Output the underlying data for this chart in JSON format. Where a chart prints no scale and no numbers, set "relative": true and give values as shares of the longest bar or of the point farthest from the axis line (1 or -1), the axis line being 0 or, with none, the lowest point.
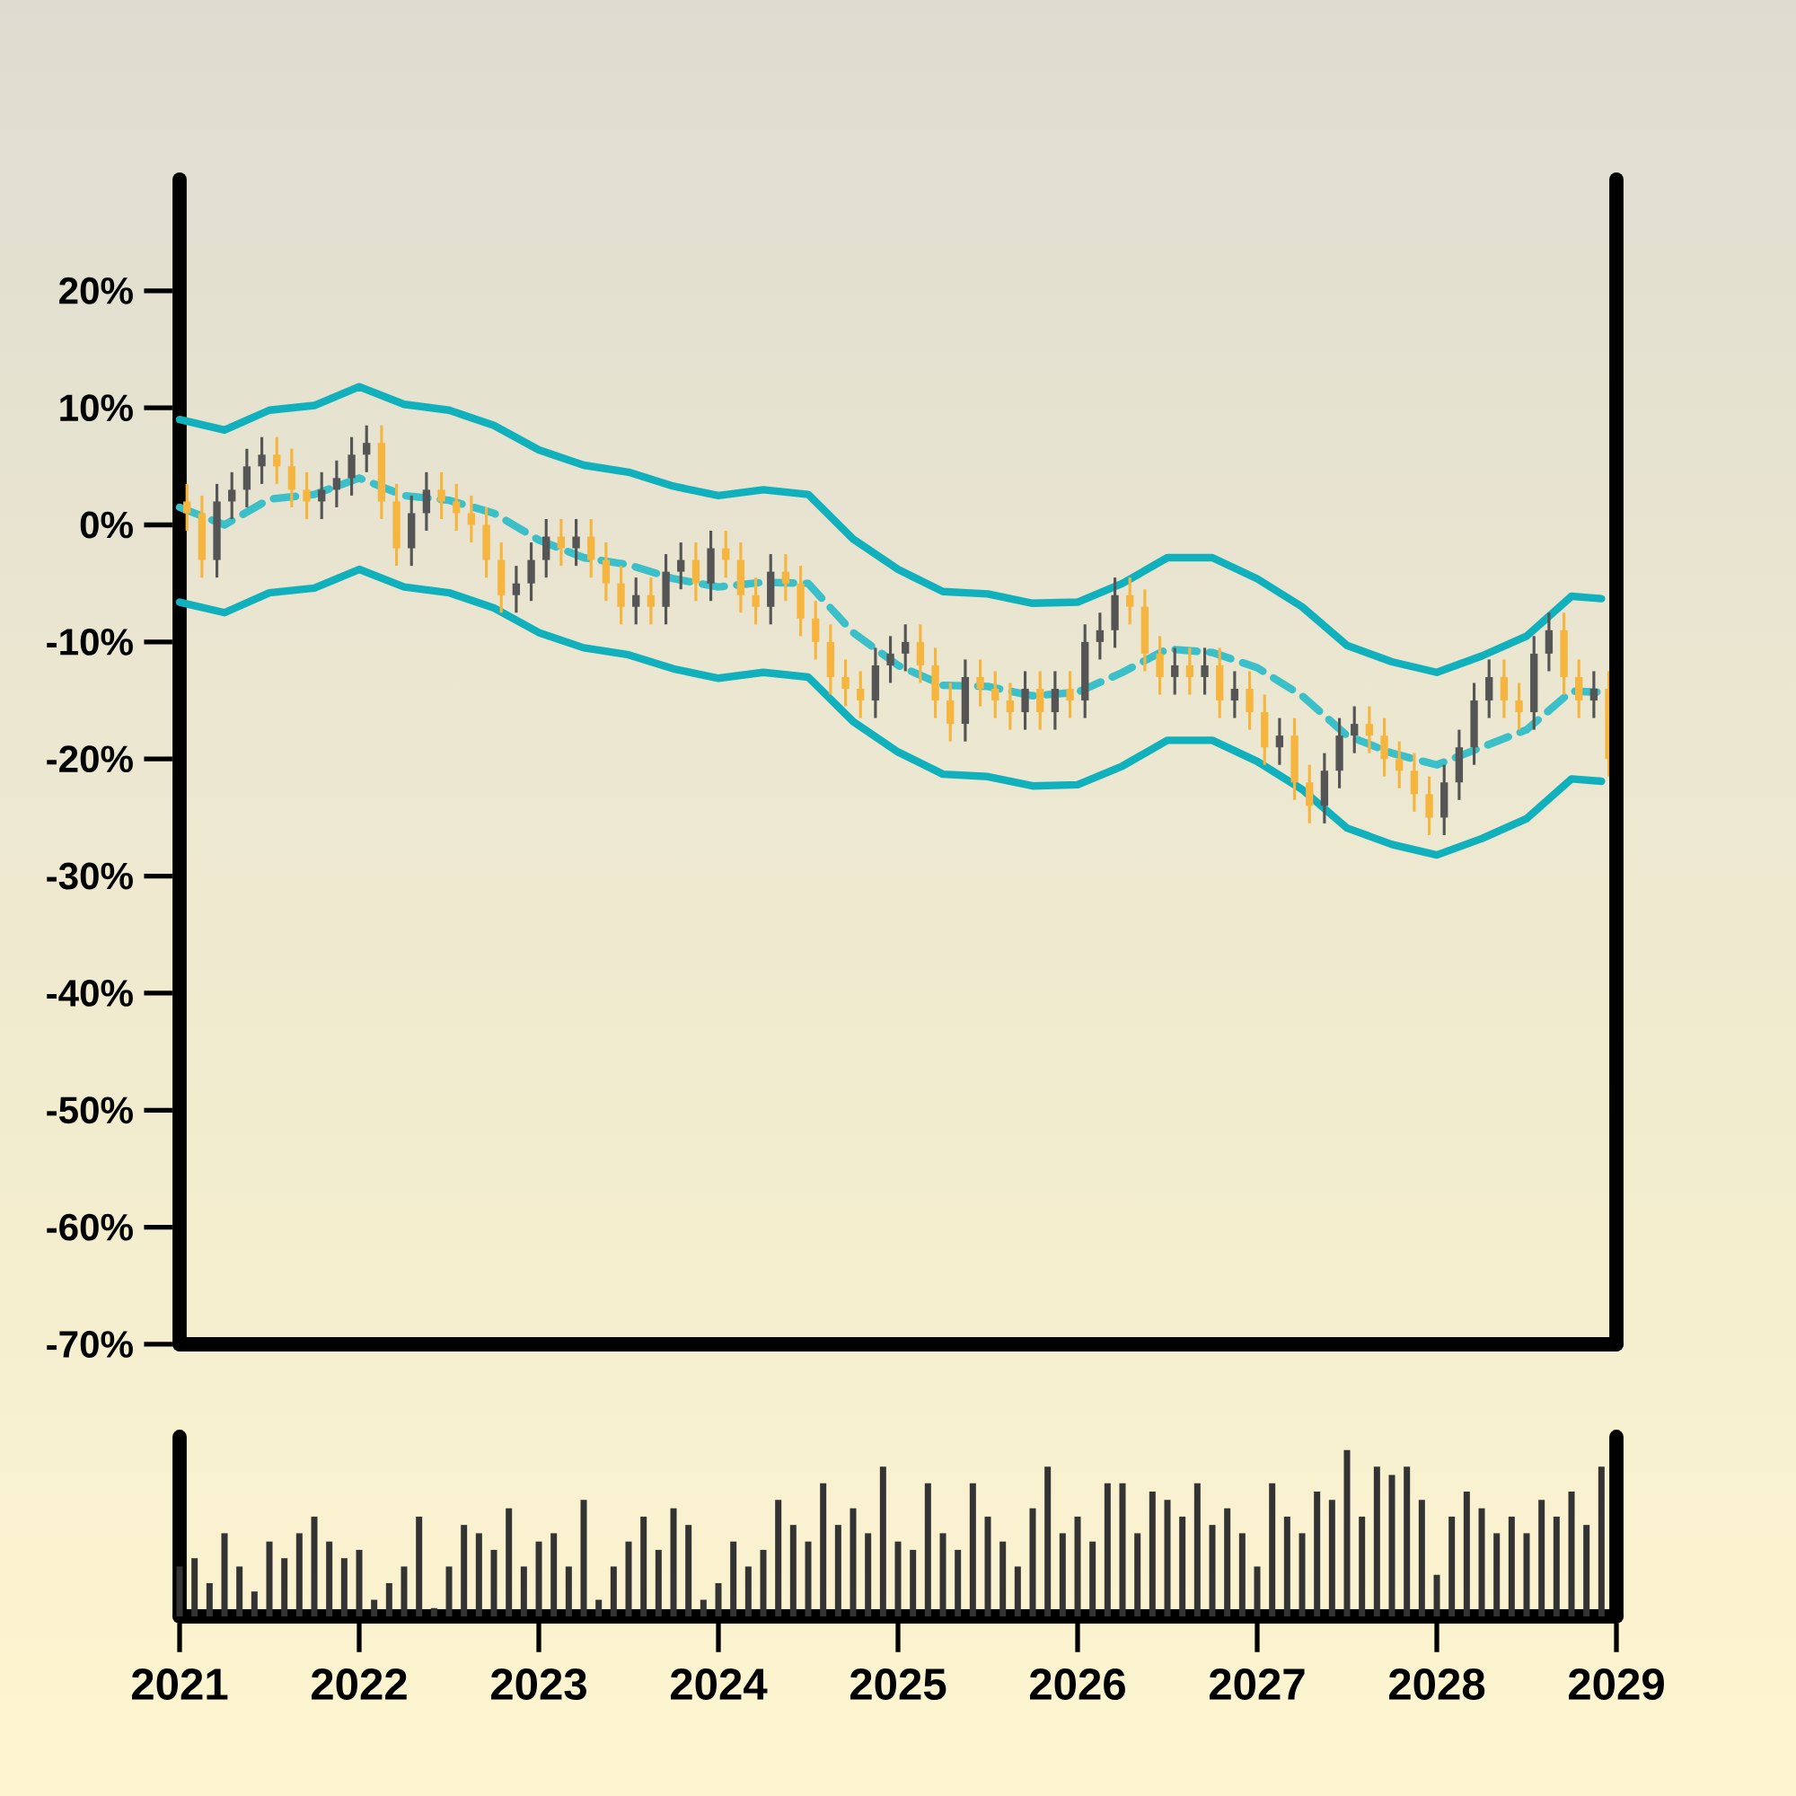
{
  "chart_data": [
    {
      "type": "candlestick",
      "x": [
        "2021-01-16",
        "2021-02-16",
        "2021-03-16",
        "2021-04-16",
        "2021-05-16",
        "2021-06-16",
        "2021-07-16",
        "2021-08-16",
        "2021-09-16",
        "2021-10-16",
        "2021-11-16",
        "2021-12-16",
        "2022-01-16",
        "2022-02-16",
        "2022-03-16",
        "2022-04-16",
        "2022-05-16",
        "2022-06-16",
        "2022-07-16",
        "2022-08-16",
        "2022-09-16",
        "2022-10-16",
        "2022-11-16",
        "2022-12-16",
        "2023-01-16",
        "2023-02-16",
        "2023-03-16",
        "2023-04-16",
        "2023-05-16",
        "2023-06-16",
        "2023-07-16",
        "2023-08-16",
        "2023-09-16",
        "2023-10-16",
        "2023-11-16",
        "2023-12-16",
        "2024-01-16",
        "2024-02-16",
        "2024-03-16",
        "2024-04-16",
        "2024-05-16",
        "2024-06-16",
        "2024-07-16",
        "2024-08-16",
        "2024-09-16",
        "2024-10-16",
        "2024-11-16",
        "2024-12-16",
        "2025-01-16",
        "2025-02-16",
        "2025-03-16",
        "2025-04-16",
        "2025-05-16",
        "2025-06-16",
        "2025-07-16",
        "2025-08-16",
        "2025-09-16",
        "2025-10-16",
        "2025-11-16",
        "2025-12-16",
        "2026-01-16",
        "2026-02-16",
        "2026-03-16",
        "2026-04-16",
        "2026-05-16",
        "2026-06-16",
        "2026-07-16",
        "2026-08-16",
        "2026-09-16",
        "2026-10-16",
        "2026-11-16",
        "2026-12-16",
        "2027-01-16",
        "2027-02-16",
        "2027-03-16",
        "2027-04-16",
        "2027-05-16",
        "2027-06-16",
        "2027-07-16",
        "2027-08-16",
        "2027-09-16",
        "2027-10-16",
        "2027-11-16",
        "2027-12-16",
        "2028-01-16",
        "2028-02-16",
        "2028-03-16",
        "2028-04-16",
        "2028-05-16",
        "2028-06-16",
        "2028-07-16",
        "2028-08-16",
        "2028-09-16",
        "2028-10-16",
        "2028-11-16",
        "2028-12-16"
      ],
      "ohlc": [
        [
          2,
          3.5,
          -0.5,
          1
        ],
        [
          1,
          2.5,
          -4.5,
          -3
        ],
        [
          -3,
          3.5,
          -4.5,
          2
        ],
        [
          2,
          4.5,
          0.5,
          3
        ],
        [
          3,
          6.5,
          1.5,
          5
        ],
        [
          5,
          7.5,
          3.5,
          6
        ],
        [
          6,
          7.5,
          3.5,
          5
        ],
        [
          5,
          6.5,
          1.5,
          3
        ],
        [
          3,
          4.5,
          0.5,
          2
        ],
        [
          2,
          4.5,
          0.5,
          3
        ],
        [
          3,
          5.5,
          1.5,
          4
        ],
        [
          4,
          7.5,
          2.5,
          6
        ],
        [
          6,
          8.5,
          4.5,
          7
        ],
        [
          7,
          8.5,
          0.5,
          2
        ],
        [
          2,
          3.5,
          -3.5,
          -2
        ],
        [
          -2,
          2.5,
          -3.5,
          1
        ],
        [
          1,
          4.5,
          -0.5,
          3
        ],
        [
          3,
          4.5,
          0.5,
          2
        ],
        [
          2,
          3.5,
          -0.5,
          1
        ],
        [
          1,
          2.5,
          -1.5,
          0
        ],
        [
          0,
          1.5,
          -4.5,
          -3
        ],
        [
          -3,
          -1.5,
          -7.5,
          -6
        ],
        [
          -6,
          -3.5,
          -7.5,
          -5
        ],
        [
          -5,
          -1.5,
          -6.5,
          -3
        ],
        [
          -3,
          0.5,
          -4.5,
          -1
        ],
        [
          -1,
          0.5,
          -3.5,
          -2
        ],
        [
          -2,
          0.5,
          -3.5,
          -1
        ],
        [
          -1,
          0.5,
          -4.5,
          -3
        ],
        [
          -3,
          -1.5,
          -6.5,
          -5
        ],
        [
          -5,
          -3.5,
          -8.5,
          -7
        ],
        [
          -7,
          -4.5,
          -8.5,
          -6
        ],
        [
          -6,
          -4.5,
          -8.5,
          -7
        ],
        [
          -7,
          -2.5,
          -8.5,
          -4
        ],
        [
          -4,
          -1.5,
          -5.5,
          -3
        ],
        [
          -3,
          -1.5,
          -6.5,
          -5
        ],
        [
          -5,
          -0.5,
          -6.5,
          -2
        ],
        [
          -2,
          -0.5,
          -4.5,
          -3
        ],
        [
          -3,
          -1.5,
          -7.5,
          -6
        ],
        [
          -6,
          -4.5,
          -8.5,
          -7
        ],
        [
          -7,
          -2.5,
          -8.5,
          -4
        ],
        [
          -4,
          -2.5,
          -6.5,
          -5
        ],
        [
          -5,
          -3.5,
          -9.5,
          -8
        ],
        [
          -8,
          -6.5,
          -11.5,
          -10
        ],
        [
          -10,
          -8.5,
          -14.5,
          -13
        ],
        [
          -13,
          -11.5,
          -15.5,
          -14
        ],
        [
          -14,
          -12.5,
          -16.5,
          -15
        ],
        [
          -15,
          -10.5,
          -16.5,
          -12
        ],
        [
          -12,
          -9.5,
          -13.5,
          -11
        ],
        [
          -11,
          -8.5,
          -12.5,
          -10
        ],
        [
          -10,
          -8.5,
          -13.5,
          -12
        ],
        [
          -12,
          -10.5,
          -16.5,
          -15
        ],
        [
          -15,
          -13.5,
          -18.5,
          -17
        ],
        [
          -17,
          -11.5,
          -18.5,
          -13
        ],
        [
          -13,
          -11.5,
          -15.5,
          -14
        ],
        [
          -14,
          -12.5,
          -16.5,
          -15
        ],
        [
          -15,
          -13.5,
          -17.5,
          -16
        ],
        [
          -16,
          -12.5,
          -17.5,
          -14
        ],
        [
          -14,
          -12.5,
          -17.5,
          -16
        ],
        [
          -16,
          -12.5,
          -17.5,
          -14
        ],
        [
          -14,
          -12.5,
          -16.5,
          -15
        ],
        [
          -15,
          -8.5,
          -16.5,
          -10
        ],
        [
          -10,
          -7.5,
          -11.5,
          -9
        ],
        [
          -9,
          -4.5,
          -10.5,
          -6
        ],
        [
          -6,
          -4.5,
          -8.5,
          -7
        ],
        [
          -7,
          -5.5,
          -12.5,
          -11
        ],
        [
          -11,
          -9.5,
          -14.5,
          -13
        ],
        [
          -13,
          -10.5,
          -14.5,
          -12
        ],
        [
          -12,
          -10.5,
          -14.5,
          -13
        ],
        [
          -13,
          -10.5,
          -14.5,
          -12
        ],
        [
          -12,
          -10.5,
          -16.5,
          -15
        ],
        [
          -15,
          -12.5,
          -16.5,
          -14
        ],
        [
          -14,
          -12.5,
          -17.5,
          -16
        ],
        [
          -16,
          -14.5,
          -20.5,
          -19
        ],
        [
          -19,
          -16.5,
          -20.5,
          -18
        ],
        [
          -18,
          -16.5,
          -23.5,
          -22
        ],
        [
          -22,
          -20.5,
          -25.5,
          -24
        ],
        [
          -24,
          -19.5,
          -25.5,
          -21
        ],
        [
          -21,
          -16.5,
          -22.5,
          -18
        ],
        [
          -18,
          -15.5,
          -19.5,
          -17
        ],
        [
          -17,
          -15.5,
          -19.5,
          -18
        ],
        [
          -18,
          -16.5,
          -21.5,
          -20
        ],
        [
          -20,
          -18.5,
          -22.5,
          -21
        ],
        [
          -21,
          -19.5,
          -24.5,
          -23
        ],
        [
          -23,
          -21.5,
          -26.5,
          -25
        ],
        [
          -25,
          -20.5,
          -26.5,
          -22
        ],
        [
          -22,
          -17.5,
          -23.5,
          -19
        ],
        [
          -19,
          -13.5,
          -20.5,
          -15
        ],
        [
          -15,
          -11.5,
          -16.5,
          -13
        ],
        [
          -13,
          -11.5,
          -16.5,
          -15
        ],
        [
          -15,
          -13.5,
          -17.5,
          -16
        ],
        [
          -16,
          -9.5,
          -17.5,
          -11
        ],
        [
          -11,
          -7.5,
          -12.5,
          -9
        ],
        [
          -9,
          -7.5,
          -14.5,
          -13
        ],
        [
          -13,
          -11.5,
          -16.5,
          -15
        ],
        [
          -15,
          -12.5,
          -16.5,
          -14
        ],
        [
          -14,
          -12.5,
          -21.5,
          -20
        ]
      ],
      "colors": [
        "#f5b53f",
        "#f5b53f",
        "#555555",
        "#555555",
        "#555555",
        "#555555",
        "#f5b53f",
        "#f5b53f",
        "#f5b53f",
        "#555555",
        "#555555",
        "#555555",
        "#555555",
        "#f5b53f",
        "#f5b53f",
        "#555555",
        "#555555",
        "#f5b53f",
        "#f5b53f",
        "#f5b53f",
        "#f5b53f",
        "#f5b53f",
        "#555555",
        "#555555",
        "#555555",
        "#f5b53f",
        "#555555",
        "#f5b53f",
        "#f5b53f",
        "#f5b53f",
        "#555555",
        "#f5b53f",
        "#555555",
        "#555555",
        "#f5b53f",
        "#555555",
        "#f5b53f",
        "#f5b53f",
        "#f5b53f",
        "#555555",
        "#f5b53f",
        "#f5b53f",
        "#f5b53f",
        "#f5b53f",
        "#f5b53f",
        "#f5b53f",
        "#555555",
        "#555555",
        "#555555",
        "#f5b53f",
        "#f5b53f",
        "#f5b53f",
        "#555555",
        "#f5b53f",
        "#f5b53f",
        "#f5b53f",
        "#555555",
        "#f5b53f",
        "#555555",
        "#f5b53f",
        "#555555",
        "#555555",
        "#555555",
        "#f5b53f",
        "#f5b53f",
        "#f5b53f",
        "#555555",
        "#f5b53f",
        "#555555",
        "#f5b53f",
        "#555555",
        "#f5b53f",
        "#f5b53f",
        "#555555",
        "#f5b53f",
        "#f5b53f",
        "#555555",
        "#555555",
        "#555555",
        "#f5b53f",
        "#f5b53f",
        "#f5b53f",
        "#f5b53f",
        "#f5b53f",
        "#555555",
        "#555555",
        "#555555",
        "#555555",
        "#f5b53f",
        "#f5b53f",
        "#555555",
        "#555555",
        "#f5b53f",
        "#f5b53f",
        "#555555",
        "#f5b53f"
      ],
      "series": [
        {
          "type": "line",
          "color": "#10b0bc",
          "line_style": "solid",
          "x": [
            "2021-01",
            "2021-04",
            "2021-07",
            "2021-10",
            "2022-01",
            "2022-04",
            "2022-07",
            "2022-10",
            "2023-01",
            "2023-04",
            "2023-07",
            "2023-10",
            "2024-01",
            "2024-04",
            "2024-07",
            "2024-10",
            "2025-01",
            "2025-04",
            "2025-07",
            "2025-10",
            "2026-01",
            "2026-04",
            "2026-07",
            "2026-10",
            "2027-01",
            "2027-04",
            "2027-07",
            "2027-10",
            "2028-01",
            "2028-04",
            "2028-07",
            "2028-10",
            "2028-12"
          ],
          "values": [
            9.0,
            8.1,
            9.8,
            10.2,
            11.8,
            10.3,
            9.8,
            8.5,
            6.4,
            5.1,
            4.5,
            3.3,
            2.5,
            3.0,
            2.6,
            -1.2,
            -3.8,
            -5.7,
            -5.9,
            -6.7,
            -6.6,
            -5.0,
            -2.8,
            -2.8,
            -4.6,
            -7.0,
            -10.3,
            -11.7,
            -12.6,
            -11.2,
            -9.5,
            -6.1,
            -6.3
          ]
        },
        {
          "type": "line",
          "color": "#3bbfc9",
          "line_style": "dashed",
          "x": [
            "2021-01",
            "2021-04",
            "2021-07",
            "2021-10",
            "2022-01",
            "2022-04",
            "2022-07",
            "2022-10",
            "2023-01",
            "2023-04",
            "2023-07",
            "2023-10",
            "2024-01",
            "2024-04",
            "2024-07",
            "2024-10",
            "2025-01",
            "2025-04",
            "2025-07",
            "2025-10",
            "2026-01",
            "2026-04",
            "2026-07",
            "2026-10",
            "2027-01",
            "2027-04",
            "2027-07",
            "2027-10",
            "2028-01",
            "2028-04",
            "2028-07",
            "2028-10",
            "2028-12"
          ],
          "values": [
            1.5,
            0.0,
            2.2,
            2.6,
            4.0,
            2.5,
            2.1,
            1.0,
            -1.3,
            -2.8,
            -3.4,
            -4.6,
            -5.3,
            -4.9,
            -5.0,
            -9.2,
            -12.0,
            -13.7,
            -13.8,
            -14.6,
            -14.3,
            -12.6,
            -10.6,
            -10.9,
            -12.2,
            -14.6,
            -18.0,
            -19.5,
            -20.5,
            -19.0,
            -17.5,
            -14.2,
            -14.3
          ]
        },
        {
          "type": "line",
          "color": "#10b0bc",
          "line_style": "solid",
          "x": [
            "2021-01",
            "2021-04",
            "2021-07",
            "2021-10",
            "2022-01",
            "2022-04",
            "2022-07",
            "2022-10",
            "2023-01",
            "2023-04",
            "2023-07",
            "2023-10",
            "2024-01",
            "2024-04",
            "2024-07",
            "2024-10",
            "2025-01",
            "2025-04",
            "2025-07",
            "2025-10",
            "2026-01",
            "2026-04",
            "2026-07",
            "2026-10",
            "2027-01",
            "2027-04",
            "2027-07",
            "2027-10",
            "2028-01",
            "2028-04",
            "2028-07",
            "2028-10",
            "2028-12"
          ],
          "values": [
            -6.6,
            -7.5,
            -5.8,
            -5.4,
            -3.8,
            -5.3,
            -5.8,
            -7.1,
            -9.2,
            -10.5,
            -11.1,
            -12.3,
            -13.1,
            -12.6,
            -13.0,
            -16.8,
            -19.4,
            -21.3,
            -21.5,
            -22.3,
            -22.2,
            -20.6,
            -18.4,
            -18.4,
            -20.2,
            -22.6,
            -25.9,
            -27.3,
            -28.2,
            -26.8,
            -25.1,
            -21.7,
            -21.9
          ]
        }
      ],
      "xlim": [
        "2021",
        "2029"
      ],
      "ylim": [
        -70,
        29.5
      ],
      "yticks": [
        {
          "value": -70,
          "label": "-70%"
        },
        {
          "value": -60,
          "label": "-60%"
        },
        {
          "value": -50,
          "label": "-50%"
        },
        {
          "value": -40,
          "label": "-40%"
        },
        {
          "value": -30,
          "label": "-30%"
        },
        {
          "value": -20,
          "label": "-20%"
        },
        {
          "value": -10,
          "label": "-10%"
        },
        {
          "value": 0,
          "label": "0%"
        },
        {
          "value": 10,
          "label": "10%"
        },
        {
          "value": 20,
          "label": "20%"
        }
      ],
      "tick_labels": "y"
    },
    {
      "type": "bar",
      "relative": true,
      "color": "#333333",
      "x": [
        "2021-01",
        "2021-02",
        "2021-03",
        "2021-04",
        "2021-05",
        "2021-06",
        "2021-07",
        "2021-08",
        "2021-09",
        "2021-10",
        "2021-11",
        "2021-12",
        "2022-01",
        "2022-02",
        "2022-03",
        "2022-04",
        "2022-05",
        "2022-06",
        "2022-07",
        "2022-08",
        "2022-09",
        "2022-10",
        "2022-11",
        "2022-12",
        "2023-01",
        "2023-02",
        "2023-03",
        "2023-04",
        "2023-05",
        "2023-06",
        "2023-07",
        "2023-08",
        "2023-09",
        "2023-10",
        "2023-11",
        "2023-12",
        "2024-01",
        "2024-02",
        "2024-03",
        "2024-04",
        "2024-05",
        "2024-06",
        "2024-07",
        "2024-08",
        "2024-09",
        "2024-10",
        "2024-11",
        "2024-12",
        "2025-01",
        "2025-02",
        "2025-03",
        "2025-04",
        "2025-05",
        "2025-06",
        "2025-07",
        "2025-08",
        "2025-09",
        "2025-10",
        "2025-11",
        "2025-12",
        "2026-01",
        "2026-02",
        "2026-03",
        "2026-04",
        "2026-05",
        "2026-06",
        "2026-07",
        "2026-08",
        "2026-09",
        "2026-10",
        "2026-11",
        "2026-12",
        "2027-01",
        "2027-02",
        "2027-03",
        "2027-04",
        "2027-05",
        "2027-06",
        "2027-07",
        "2027-08",
        "2027-09",
        "2027-10",
        "2027-11",
        "2027-12",
        "2028-01",
        "2028-02",
        "2028-03",
        "2028-04",
        "2028-05",
        "2028-06",
        "2028-07",
        "2028-08",
        "2028-09",
        "2028-10",
        "2028-11",
        "2028-12"
      ],
      "values": [
        0.3,
        0.35,
        0.2,
        0.5,
        0.3,
        0.15,
        0.45,
        0.35,
        0.5,
        0.6,
        0.45,
        0.35,
        0.4,
        0.1,
        0.2,
        0.3,
        0.6,
        0.05,
        0.3,
        0.55,
        0.5,
        0.4,
        0.65,
        0.3,
        0.45,
        0.5,
        0.3,
        0.7,
        0.1,
        0.3,
        0.45,
        0.6,
        0.4,
        0.65,
        0.55,
        0.1,
        0.2,
        0.45,
        0.3,
        0.4,
        0.7,
        0.55,
        0.45,
        0.8,
        0.55,
        0.65,
        0.5,
        0.9,
        0.45,
        0.4,
        0.8,
        0.5,
        0.4,
        0.8,
        0.6,
        0.45,
        0.3,
        0.65,
        0.9,
        0.5,
        0.6,
        0.45,
        0.8,
        0.8,
        0.5,
        0.75,
        0.7,
        0.6,
        0.8,
        0.55,
        0.65,
        0.5,
        0.3,
        0.8,
        0.6,
        0.5,
        0.75,
        0.7,
        1.0,
        0.6,
        0.9,
        0.85,
        0.9,
        0.7,
        0.25,
        0.6,
        0.75,
        0.65,
        0.5,
        0.6,
        0.5,
        0.7,
        0.6,
        0.75,
        0.55,
        0.9
      ],
      "xlim": [
        "2021",
        "2029"
      ],
      "xticks": [
        "2021",
        "2022",
        "2023",
        "2024",
        "2025",
        "2026",
        "2027",
        "2028",
        "2029"
      ],
      "tick_labels": "x"
    }
  ]
}
